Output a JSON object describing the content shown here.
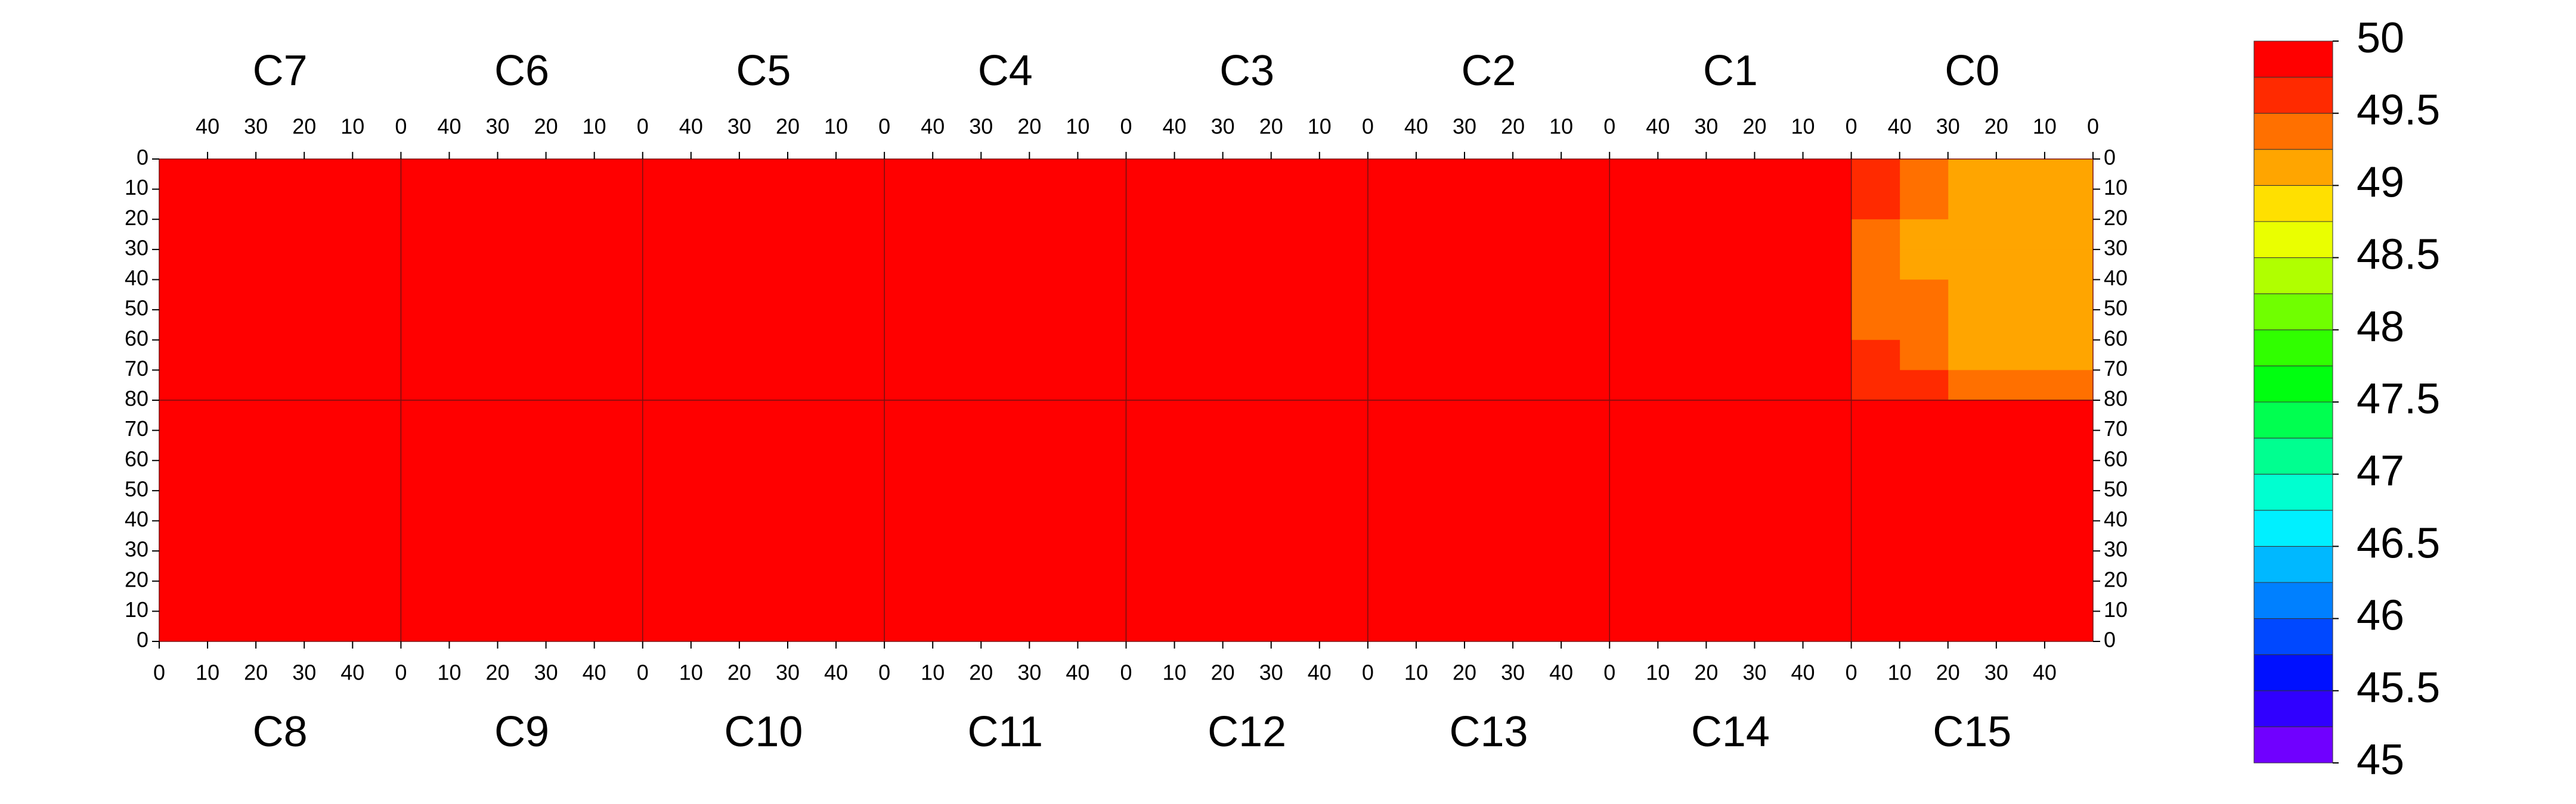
{
  "chart_data": {
    "type": "heatmap",
    "xlim": [
      0,
      50
    ],
    "xticks": [
      0,
      10,
      20,
      30,
      40
    ],
    "ylim": [
      0,
      80
    ],
    "yticks": [
      0,
      10,
      20,
      30,
      40,
      50,
      60,
      70,
      80
    ],
    "chips": [
      {
        "name": "C0",
        "values": [
          [
            49.1,
            49.1,
            49.2,
            49.3,
            49.5
          ],
          [
            49.0,
            49.1,
            49.1,
            49.3,
            49.5
          ],
          [
            49.0,
            49.0,
            49.1,
            49.2,
            49.4
          ],
          [
            49.0,
            49.1,
            49.1,
            49.2,
            49.4
          ],
          [
            49.1,
            49.1,
            49.2,
            49.3,
            49.4
          ],
          [
            49.1,
            49.1,
            49.2,
            49.3,
            49.4
          ],
          [
            49.1,
            49.2,
            49.2,
            49.3,
            49.5
          ],
          [
            49.3,
            49.4,
            49.4,
            49.5,
            49.6
          ]
        ]
      },
      {
        "name": "C1",
        "values": [
          [
            49.95,
            49.9,
            49.9,
            49.95,
            49.95
          ],
          [
            49.95,
            49.9,
            49.95,
            49.95,
            49.95
          ],
          [
            49.9,
            49.95,
            49.95,
            49.95,
            49.95
          ],
          [
            49.95,
            49.95,
            49.9,
            49.95,
            49.95
          ],
          [
            49.95,
            49.95,
            49.95,
            49.95,
            49.95
          ],
          [
            49.95,
            49.9,
            49.95,
            49.95,
            49.95
          ],
          [
            49.95,
            49.95,
            49.9,
            49.95,
            49.95
          ],
          [
            49.9,
            49.95,
            49.95,
            49.95,
            49.95
          ]
        ]
      },
      {
        "name": "C2",
        "values": [
          [
            49.85,
            49.9,
            49.9,
            49.85,
            49.9
          ],
          [
            49.85,
            49.85,
            49.9,
            49.9,
            49.9
          ],
          [
            49.9,
            49.85,
            49.85,
            49.9,
            49.9
          ],
          [
            49.85,
            49.9,
            49.85,
            49.9,
            49.9
          ],
          [
            49.9,
            49.85,
            49.9,
            49.9,
            49.9
          ],
          [
            49.85,
            49.9,
            49.9,
            49.85,
            49.9
          ],
          [
            49.85,
            49.85,
            49.9,
            49.9,
            49.9
          ],
          [
            49.85,
            49.9,
            49.9,
            49.9,
            49.9
          ]
        ]
      },
      {
        "name": "C3",
        "values": [
          [
            49.8,
            49.85,
            49.85,
            49.85,
            49.85
          ],
          [
            49.8,
            49.85,
            49.8,
            49.85,
            49.85
          ],
          [
            49.85,
            49.8,
            49.85,
            49.85,
            49.85
          ],
          [
            49.8,
            49.85,
            49.85,
            49.8,
            49.85
          ],
          [
            49.85,
            49.8,
            49.85,
            49.85,
            49.85
          ],
          [
            49.8,
            49.85,
            49.8,
            49.85,
            49.85
          ],
          [
            49.85,
            49.85,
            49.85,
            49.8,
            49.85
          ],
          [
            49.8,
            49.85,
            49.85,
            49.85,
            49.9
          ]
        ]
      },
      {
        "name": "C4",
        "values": [
          [
            49.8,
            49.85,
            49.8,
            49.85,
            49.8
          ],
          [
            49.85,
            49.8,
            49.85,
            49.8,
            49.8
          ],
          [
            49.8,
            49.85,
            49.8,
            49.85,
            49.8
          ],
          [
            49.85,
            49.8,
            49.85,
            49.8,
            49.8
          ],
          [
            49.8,
            49.8,
            49.85,
            49.8,
            49.8
          ],
          [
            49.85,
            49.8,
            49.8,
            49.85,
            49.8
          ],
          [
            49.8,
            49.85,
            49.8,
            49.8,
            49.8
          ],
          [
            49.85,
            49.8,
            49.85,
            49.8,
            49.8
          ]
        ]
      },
      {
        "name": "C5",
        "values": [
          [
            49.8,
            49.85,
            49.85,
            49.8,
            49.85
          ],
          [
            49.85,
            49.85,
            49.8,
            49.85,
            49.85
          ],
          [
            49.8,
            49.85,
            49.85,
            49.85,
            49.85
          ],
          [
            49.85,
            49.8,
            49.85,
            49.85,
            49.85
          ],
          [
            49.85,
            49.85,
            49.85,
            49.8,
            49.85
          ],
          [
            49.8,
            49.85,
            49.85,
            49.85,
            49.85
          ],
          [
            49.85,
            49.8,
            49.85,
            49.85,
            49.85
          ],
          [
            49.85,
            49.85,
            49.8,
            49.85,
            49.85
          ]
        ]
      },
      {
        "name": "C6",
        "values": [
          [
            49.8,
            49.85,
            49.85,
            49.85,
            49.85
          ],
          [
            49.8,
            49.85,
            49.85,
            49.8,
            49.85
          ],
          [
            49.8,
            49.85,
            49.8,
            49.85,
            49.85
          ],
          [
            49.8,
            49.85,
            49.85,
            49.85,
            49.85
          ],
          [
            49.8,
            49.8,
            49.85,
            49.85,
            49.85
          ],
          [
            49.8,
            49.85,
            49.85,
            49.8,
            49.85
          ],
          [
            49.8,
            49.85,
            49.85,
            49.85,
            49.85
          ],
          [
            49.8,
            49.85,
            49.8,
            49.85,
            49.85
          ]
        ]
      },
      {
        "name": "C7",
        "values": [
          [
            49.85,
            49.85,
            49.8,
            49.85,
            49.85
          ],
          [
            49.85,
            49.8,
            49.85,
            49.85,
            49.85
          ],
          [
            49.85,
            49.85,
            49.85,
            49.8,
            49.85
          ],
          [
            49.85,
            49.85,
            49.8,
            49.85,
            49.85
          ],
          [
            49.8,
            49.85,
            49.85,
            49.85,
            49.85
          ],
          [
            49.85,
            49.85,
            49.85,
            49.8,
            49.85
          ],
          [
            49.85,
            49.8,
            49.85,
            49.85,
            49.85
          ],
          [
            49.85,
            49.85,
            49.85,
            49.85,
            49.8
          ]
        ]
      },
      {
        "name": "C8",
        "values": [
          [
            49.85,
            49.85,
            49.85,
            49.8,
            49.85
          ],
          [
            49.85,
            49.8,
            49.85,
            49.85,
            49.85
          ],
          [
            49.85,
            49.85,
            49.8,
            49.85,
            49.85
          ],
          [
            49.8,
            49.85,
            49.85,
            49.85,
            49.85
          ],
          [
            49.85,
            49.85,
            49.85,
            49.8,
            49.85
          ],
          [
            49.85,
            49.8,
            49.85,
            49.85,
            49.85
          ],
          [
            49.85,
            49.85,
            49.85,
            49.85,
            49.85
          ],
          [
            49.85,
            49.85,
            49.8,
            49.85,
            49.85
          ]
        ]
      },
      {
        "name": "C9",
        "values": [
          [
            49.8,
            49.85,
            49.85,
            49.85,
            49.8
          ],
          [
            49.8,
            49.85,
            49.8,
            49.85,
            49.85
          ],
          [
            49.8,
            49.85,
            49.85,
            49.85,
            49.85
          ],
          [
            49.85,
            49.85,
            49.85,
            49.8,
            49.85
          ],
          [
            49.8,
            49.85,
            49.85,
            49.85,
            49.85
          ],
          [
            49.8,
            49.85,
            49.8,
            49.85,
            49.85
          ],
          [
            49.85,
            49.85,
            49.85,
            49.85,
            49.85
          ],
          [
            49.8,
            49.85,
            49.85,
            49.85,
            49.85
          ]
        ]
      },
      {
        "name": "C10",
        "values": [
          [
            49.8,
            49.85,
            49.85,
            49.8,
            49.8
          ],
          [
            49.8,
            49.85,
            49.8,
            49.85,
            49.8
          ],
          [
            49.85,
            49.85,
            49.85,
            49.85,
            49.8
          ],
          [
            49.8,
            49.8,
            49.85,
            49.85,
            49.8
          ],
          [
            49.85,
            49.85,
            49.8,
            49.85,
            49.8
          ],
          [
            49.8,
            49.85,
            49.85,
            49.85,
            49.8
          ],
          [
            49.85,
            49.85,
            49.85,
            49.8,
            49.8
          ],
          [
            49.85,
            49.8,
            49.85,
            49.85,
            49.8
          ]
        ]
      },
      {
        "name": "C11",
        "values": [
          [
            49.8,
            49.85,
            49.85,
            49.85,
            49.85
          ],
          [
            49.85,
            49.85,
            49.8,
            49.85,
            49.85
          ],
          [
            49.85,
            49.8,
            49.85,
            49.85,
            49.85
          ],
          [
            49.8,
            49.85,
            49.85,
            49.8,
            49.85
          ],
          [
            49.85,
            49.85,
            49.85,
            49.85,
            49.85
          ],
          [
            49.8,
            49.85,
            49.85,
            49.85,
            49.85
          ],
          [
            49.85,
            49.85,
            49.85,
            49.85,
            49.85
          ],
          [
            49.8,
            49.85,
            49.85,
            49.85,
            49.85
          ]
        ]
      },
      {
        "name": "C12",
        "values": [
          [
            49.85,
            49.9,
            49.85,
            49.9,
            49.8
          ],
          [
            49.85,
            49.85,
            49.9,
            49.85,
            49.85
          ],
          [
            49.9,
            49.85,
            49.85,
            49.9,
            49.85
          ],
          [
            49.85,
            49.9,
            49.85,
            49.85,
            49.85
          ],
          [
            49.85,
            49.85,
            49.9,
            49.85,
            49.8
          ],
          [
            49.9,
            49.85,
            49.85,
            49.85,
            49.85
          ],
          [
            49.85,
            49.85,
            49.85,
            49.9,
            49.8
          ],
          [
            49.85,
            49.9,
            49.85,
            49.85,
            49.85
          ]
        ]
      },
      {
        "name": "C13",
        "values": [
          [
            49.9,
            49.9,
            49.9,
            49.9,
            49.95
          ],
          [
            49.9,
            49.9,
            49.9,
            49.95,
            49.95
          ],
          [
            49.9,
            49.85,
            49.9,
            49.9,
            49.95
          ],
          [
            49.9,
            49.9,
            49.9,
            49.95,
            49.95
          ],
          [
            49.9,
            49.9,
            49.85,
            49.9,
            49.95
          ],
          [
            49.9,
            49.9,
            49.9,
            49.95,
            49.95
          ],
          [
            49.9,
            49.9,
            49.9,
            49.9,
            49.95
          ],
          [
            49.85,
            49.9,
            49.9,
            49.9,
            49.95
          ]
        ]
      },
      {
        "name": "C14",
        "values": [
          [
            49.95,
            49.95,
            49.9,
            49.95,
            49.95
          ],
          [
            49.95,
            49.95,
            49.95,
            49.95,
            49.95
          ],
          [
            49.95,
            49.95,
            49.95,
            49.9,
            49.95
          ],
          [
            49.95,
            49.95,
            49.95,
            49.95,
            49.95
          ],
          [
            49.95,
            49.95,
            49.95,
            49.95,
            49.95
          ],
          [
            49.9,
            49.95,
            49.95,
            49.95,
            49.95
          ],
          [
            49.95,
            49.95,
            49.95,
            49.95,
            49.95
          ],
          [
            49.95,
            49.95,
            49.9,
            49.95,
            49.95
          ]
        ]
      },
      {
        "name": "C15",
        "values": [
          [
            49.9,
            49.95,
            49.95,
            49.95,
            49.95
          ],
          [
            49.9,
            49.95,
            49.95,
            49.95,
            49.95
          ],
          [
            49.95,
            49.95,
            49.95,
            49.95,
            49.95
          ],
          [
            49.9,
            49.95,
            49.95,
            49.95,
            49.95
          ],
          [
            49.9,
            49.95,
            49.95,
            49.95,
            49.95
          ],
          [
            49.95,
            49.95,
            49.95,
            49.95,
            49.95
          ],
          [
            49.9,
            49.95,
            49.95,
            49.95,
            49.95
          ],
          [
            49.9,
            49.95,
            49.95,
            49.95,
            49.95
          ]
        ]
      }
    ],
    "colorbar": {
      "levels": [
        45,
        45.25,
        45.5,
        45.75,
        46,
        46.25,
        46.5,
        46.75,
        47,
        47.25,
        47.5,
        47.75,
        48,
        48.25,
        48.5,
        48.75,
        49,
        49.25,
        49.5,
        49.75,
        50
      ],
      "colors": [
        "#7000ff",
        "#3000ff",
        "#0010ff",
        "#0048ff",
        "#0080ff",
        "#00b8ff",
        "#00f0ff",
        "#00ffd0",
        "#00ff90",
        "#00ff50",
        "#00ff10",
        "#30ff00",
        "#70ff00",
        "#b0ff00",
        "#eaff00",
        "#ffe000",
        "#ffa500",
        "#ff7000",
        "#ff2a00",
        "#ff0000"
      ],
      "ticks": [
        45,
        45.5,
        46,
        46.5,
        47,
        47.5,
        48,
        48.5,
        49,
        49.5,
        50
      ]
    }
  }
}
